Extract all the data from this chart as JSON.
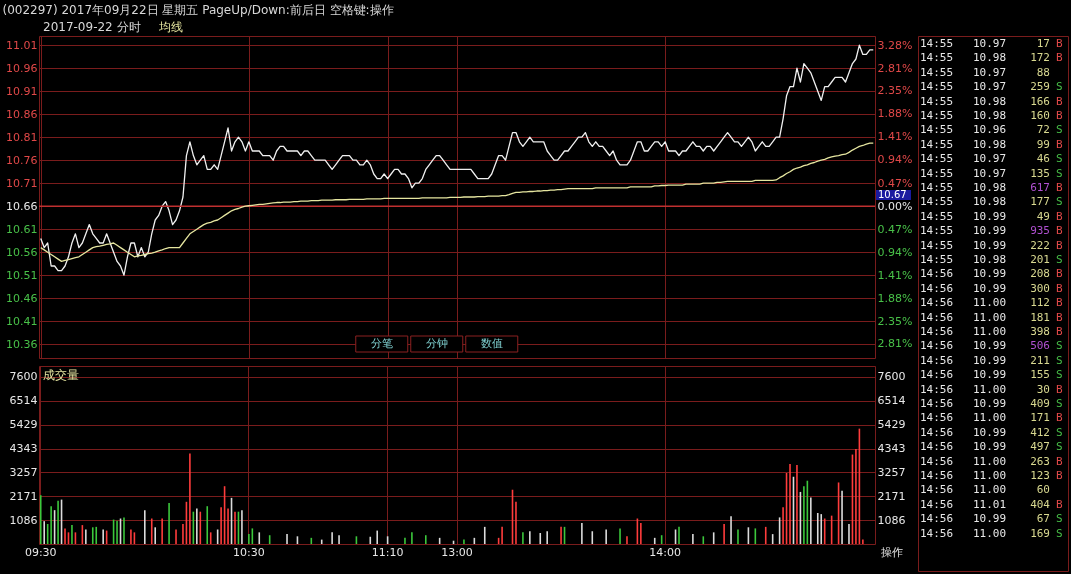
{
  "chart_data": [
    {
      "type": "line",
      "title": "(002297) 2017年09月22日 星期五 PageUp/Down:前后日 空格键:操作",
      "subtitle": "2017-09-22 分时",
      "categories": [
        null,
        null,
        null,
        null,
        null,
        null,
        null,
        null,
        null,
        null,
        null,
        null,
        null,
        null,
        null,
        null,
        null,
        null,
        null,
        null,
        null,
        null,
        null,
        null,
        null,
        null,
        null,
        null,
        null,
        null,
        null,
        null,
        null,
        null,
        null,
        null,
        null,
        null,
        null,
        null,
        null,
        null,
        null,
        null,
        null,
        null,
        null,
        null,
        null,
        null,
        null,
        null,
        null,
        null,
        null,
        null,
        null,
        null,
        null,
        null,
        null,
        null,
        null,
        null,
        null,
        null,
        null,
        null,
        null,
        null,
        null,
        null,
        null,
        null,
        null,
        null,
        null,
        null,
        null,
        null,
        null,
        null,
        null,
        null,
        null,
        null,
        null,
        null,
        null,
        null,
        null,
        null,
        null,
        null,
        null,
        null,
        null,
        null,
        null,
        null,
        null,
        null,
        null,
        null,
        null,
        null,
        null,
        null,
        null,
        null,
        null,
        null,
        null,
        null,
        null,
        null,
        null,
        null,
        null,
        null,
        null,
        null,
        null,
        null,
        null,
        null,
        null,
        null,
        null,
        null,
        null,
        null,
        null,
        null,
        null,
        null,
        null,
        null,
        null,
        null,
        null,
        null,
        null,
        null,
        null,
        null,
        null,
        null,
        null,
        null,
        null,
        null,
        null,
        null,
        null,
        null,
        null,
        null,
        null,
        null,
        null,
        null,
        null,
        null,
        null,
        null,
        null,
        null,
        null,
        null,
        null,
        null,
        null,
        null,
        null,
        null,
        null,
        null,
        null,
        null,
        null,
        null,
        null,
        null,
        null,
        null,
        null,
        null,
        null,
        null,
        null,
        null,
        null,
        null,
        null,
        null,
        null,
        null,
        null,
        null,
        null,
        null,
        null,
        null,
        null,
        null,
        null,
        null,
        null,
        null,
        null,
        null,
        null,
        null,
        null,
        null,
        null,
        null,
        null,
        null,
        null,
        null,
        null,
        null,
        null,
        null,
        null,
        null,
        null,
        null,
        null,
        null,
        null,
        null,
        null,
        null,
        null,
        null,
        null,
        null,
        null
      ],
      "ylim": [
        10.33,
        11.03
      ],
      "yticks": [
        10.36,
        10.41,
        10.46,
        10.51,
        10.56,
        10.61,
        10.66,
        10.71,
        10.76,
        10.81,
        10.86,
        10.91,
        10.96,
        11.01
      ],
      "y2lim": [
        -3.1,
        3.47
      ],
      "y2ticks": [
        {
          "value": -2.81,
          "label": "2.81%"
        },
        {
          "value": -2.35,
          "label": "2.35%"
        },
        {
          "value": -1.88,
          "label": "1.88%"
        },
        {
          "value": -1.41,
          "label": "1.41%"
        },
        {
          "value": -0.94,
          "label": "0.94%"
        },
        {
          "value": -0.47,
          "label": "0.47%"
        },
        {
          "value": 0,
          "label": "0.00%"
        },
        {
          "value": 0.47,
          "label": "0.47%"
        },
        {
          "value": 0.94,
          "label": "0.94%"
        },
        {
          "value": 1.41,
          "label": "1.41%"
        },
        {
          "value": 1.88,
          "label": "1.88%"
        },
        {
          "value": 2.35,
          "label": "2.35%"
        },
        {
          "value": 2.81,
          "label": "2.81%"
        },
        {
          "value": 3.28,
          "label": "3.28%"
        }
      ],
      "ref_lines": [
        {
          "axis": "y",
          "value": 10.66,
          "color": "#c03030"
        }
      ],
      "tick_labels": "y",
      "grid": true,
      "annotations": [
        "分笔",
        "分钟",
        "数值",
        "10.67"
      ],
      "series": [
        {
          "color": "#f0f0f0",
          "values": [
            10.59,
            10.57,
            10.58,
            10.53,
            10.53,
            10.52,
            10.52,
            10.53,
            10.55,
            10.58,
            10.6,
            10.57,
            10.58,
            10.6,
            10.62,
            10.6,
            10.59,
            10.58,
            10.58,
            10.6,
            10.58,
            10.56,
            10.54,
            10.53,
            10.51,
            10.55,
            10.58,
            10.58,
            10.55,
            10.57,
            10.55,
            10.56,
            10.6,
            10.63,
            10.64,
            10.66,
            10.67,
            10.65,
            10.62,
            10.63,
            10.65,
            10.68,
            10.77,
            10.8,
            10.77,
            10.75,
            10.76,
            10.77,
            10.74,
            10.74,
            10.75,
            10.74,
            10.77,
            10.8,
            10.83,
            10.78,
            10.8,
            10.81,
            10.8,
            10.78,
            10.8,
            10.78,
            10.78,
            10.78,
            10.77,
            10.77,
            10.77,
            10.76,
            10.78,
            10.79,
            10.79,
            10.78,
            10.78,
            10.78,
            10.78,
            10.77,
            10.78,
            10.78,
            10.77,
            10.76,
            10.76,
            10.76,
            10.76,
            10.75,
            10.74,
            10.75,
            10.76,
            10.77,
            10.77,
            10.77,
            10.76,
            10.76,
            10.75,
            10.75,
            10.76,
            10.75,
            10.73,
            10.72,
            10.72,
            10.73,
            10.72,
            10.73,
            10.74,
            10.74,
            10.73,
            10.73,
            10.72,
            10.7,
            10.71,
            10.71,
            10.72,
            10.74,
            10.75,
            10.76,
            10.77,
            10.77,
            10.76,
            10.75,
            10.74,
            10.74,
            10.74,
            10.74,
            10.74,
            10.74,
            10.74,
            10.73,
            10.72,
            10.72,
            10.72,
            10.72,
            10.73,
            10.75,
            10.77,
            10.77,
            10.76,
            10.79,
            10.82,
            10.82,
            10.8,
            10.79,
            10.8,
            10.81,
            10.8,
            10.8,
            10.8,
            10.8,
            10.78,
            10.77,
            10.76,
            10.76,
            10.77,
            10.78,
            10.78,
            10.79,
            10.8,
            10.81,
            10.81,
            10.82,
            10.8,
            10.79,
            10.8,
            10.79,
            10.79,
            10.78,
            10.77,
            10.78,
            10.76,
            10.75,
            10.75,
            10.75,
            10.76,
            10.78,
            10.8,
            10.8,
            10.78,
            10.78,
            10.79,
            10.8,
            10.8,
            10.79,
            10.8,
            10.78,
            10.78,
            10.78,
            10.77,
            10.78,
            10.78,
            10.79,
            10.8,
            10.79,
            10.79,
            10.78,
            10.79,
            10.79,
            10.78,
            10.79,
            10.8,
            10.81,
            10.82,
            10.81,
            10.8,
            10.8,
            10.79,
            10.8,
            10.81,
            10.8,
            10.78,
            10.79,
            10.8,
            10.79,
            10.79,
            10.8,
            10.81,
            10.81,
            10.85,
            10.9,
            10.92,
            10.92,
            10.96,
            10.93,
            10.97,
            10.96,
            10.95,
            10.93,
            10.91,
            10.89,
            10.92,
            10.92,
            10.93,
            10.94,
            10.94,
            10.94,
            10.93,
            10.95,
            10.97,
            10.98,
            11.01,
            10.99,
            10.99,
            11.0,
            11.0
          ]
        },
        {
          "name": "均线",
          "color": "#e6e6a0",
          "values": [
            10.57,
            10.565,
            10.56,
            10.555,
            10.55,
            10.545,
            10.54,
            10.542,
            10.544,
            10.546,
            10.548,
            10.55,
            10.555,
            10.56,
            10.565,
            10.57,
            10.572,
            10.573,
            10.575,
            10.577,
            10.578,
            10.58,
            10.575,
            10.57,
            10.565,
            10.56,
            10.555,
            10.55,
            10.552,
            10.553,
            10.555,
            10.557,
            10.558,
            10.56,
            10.563,
            10.565,
            10.568,
            10.57,
            10.57,
            10.57,
            10.57,
            10.58,
            10.59,
            10.6,
            10.605,
            10.61,
            10.615,
            10.62,
            10.623,
            10.625,
            10.628,
            10.63,
            10.635,
            10.64,
            10.645,
            10.65,
            10.653,
            10.655,
            10.658,
            10.66,
            10.661,
            10.662,
            10.663,
            10.664,
            10.664,
            10.665,
            10.666,
            10.667,
            10.668,
            10.668,
            10.669,
            10.669,
            10.669,
            10.67,
            10.67,
            10.671,
            10.671,
            10.671,
            10.672,
            10.672,
            10.672,
            10.673,
            10.673,
            10.673,
            10.673,
            10.674,
            10.674,
            10.674,
            10.674,
            10.675,
            10.675,
            10.675,
            10.675,
            10.675,
            10.676,
            10.676,
            10.676,
            10.676,
            10.676,
            10.677,
            10.677,
            10.677,
            10.677,
            10.677,
            10.677,
            10.677,
            10.677,
            10.677,
            10.677,
            10.677,
            10.678,
            10.678,
            10.678,
            10.678,
            10.678,
            10.678,
            10.678,
            10.678,
            10.679,
            10.679,
            10.679,
            10.679,
            10.68,
            10.68,
            10.68,
            10.68,
            10.681,
            10.681,
            10.681,
            10.682,
            10.682,
            10.682,
            10.682,
            10.683,
            10.683,
            10.685,
            10.688,
            10.69,
            10.69,
            10.691,
            10.691,
            10.692,
            10.692,
            10.693,
            10.693,
            10.694,
            10.694,
            10.695,
            10.695,
            10.696,
            10.696,
            10.697,
            10.698,
            10.698,
            10.698,
            10.698,
            10.698,
            10.698,
            10.698,
            10.698,
            10.7,
            10.7,
            10.7,
            10.7,
            10.7,
            10.7,
            10.7,
            10.7,
            10.7,
            10.7,
            10.702,
            10.702,
            10.702,
            10.702,
            10.702,
            10.702,
            10.702,
            10.704,
            10.704,
            10.705,
            10.705,
            10.706,
            10.706,
            10.706,
            10.706,
            10.706,
            10.708,
            10.708,
            10.708,
            10.708,
            10.708,
            10.71,
            10.71,
            10.71,
            10.71,
            10.712,
            10.712,
            10.713,
            10.714,
            10.714,
            10.714,
            10.714,
            10.714,
            10.714,
            10.714,
            10.714,
            10.716,
            10.716,
            10.716,
            10.716,
            10.716,
            10.716,
            10.717,
            10.722,
            10.726,
            10.731,
            10.735,
            10.74,
            10.743,
            10.745,
            10.748,
            10.75,
            10.753,
            10.755,
            10.758,
            10.76,
            10.762,
            10.765,
            10.767,
            10.769,
            10.77,
            10.772,
            10.773,
            10.777,
            10.782,
            10.786,
            10.79,
            10.792,
            10.795,
            10.797,
            10.797
          ]
        }
      ]
    },
    {
      "type": "bar",
      "categories": [
        "09:30",
        null,
        null,
        null,
        null,
        null,
        null,
        null,
        null,
        null,
        null,
        null,
        null,
        null,
        null,
        null,
        null,
        null,
        null,
        null,
        null,
        null,
        null,
        null,
        null,
        null,
        null,
        null,
        null,
        null,
        null,
        null,
        null,
        null,
        null,
        null,
        null,
        null,
        null,
        null,
        null,
        null,
        null,
        null,
        null,
        null,
        null,
        null,
        null,
        null,
        null,
        null,
        null,
        null,
        null,
        null,
        null,
        null,
        null,
        null,
        "10:30",
        null,
        null,
        null,
        null,
        null,
        null,
        null,
        null,
        null,
        null,
        null,
        null,
        null,
        null,
        null,
        null,
        null,
        null,
        null,
        null,
        null,
        null,
        null,
        null,
        null,
        null,
        null,
        null,
        null,
        null,
        null,
        null,
        null,
        null,
        null,
        null,
        null,
        null,
        null,
        "11:10",
        null,
        null,
        null,
        null,
        null,
        null,
        null,
        null,
        null,
        null,
        null,
        null,
        null,
        null,
        null,
        null,
        null,
        null,
        null,
        "13:00",
        null,
        null,
        null,
        null,
        null,
        null,
        null,
        null,
        null,
        null,
        null,
        null,
        null,
        null,
        null,
        null,
        null,
        null,
        null,
        null,
        null,
        null,
        null,
        null,
        null,
        null,
        null,
        null,
        null,
        null,
        null,
        null,
        null,
        null,
        null,
        null,
        null,
        null,
        null,
        null,
        null,
        null,
        null,
        null,
        null,
        null,
        null,
        null,
        null,
        null,
        null,
        null,
        null,
        null,
        null,
        null,
        null,
        null,
        null,
        "14:00",
        null,
        null,
        null,
        null,
        null,
        null,
        null,
        null,
        null,
        null,
        null,
        null,
        null,
        null,
        null,
        null,
        null,
        null,
        null,
        null,
        null,
        null,
        null,
        null,
        null,
        null,
        null,
        null,
        null,
        null,
        null,
        null,
        null,
        null,
        null,
        null,
        null,
        null,
        null,
        null,
        null,
        null,
        null,
        null,
        null,
        null,
        null,
        null,
        null,
        null,
        null,
        null,
        null,
        null,
        null,
        null,
        null,
        null,
        null,
        null
      ],
      "ylim": [
        0,
        8100
      ],
      "yticks": [
        1086,
        2171,
        3257,
        4343,
        5429,
        6514,
        7600
      ],
      "y2lim": [
        0,
        8100
      ],
      "y2ticks": [
        1086,
        2171,
        3257,
        4343,
        5429,
        6514,
        7600
      ],
      "grid": true,
      "annotations": [
        "操作"
      ],
      "series": [
        {
          "name": "成交量",
          "color": "#e6e6a0",
          "values": [
            2220,
            1040,
            910,
            1720,
            1540,
            1970,
            2020,
            710,
            530,
            860,
            530,
            null,
            860,
            660,
            null,
            760,
            780,
            null,
            660,
            610,
            null,
            1110,
            1060,
            1160,
            1210,
            null,
            660,
            530,
            null,
            null,
            1540,
            null,
            1160,
            760,
            null,
            1160,
            null,
            1870,
            null,
            660,
            null,
            910,
            1920,
            4120,
            1470,
            1620,
            1470,
            null,
            1720,
            530,
            null,
            660,
            1670,
            2630,
            1620,
            2100,
            1470,
            1470,
            1540,
            null,
            450,
            710,
            null,
            530,
            null,
            null,
            400,
            null,
            null,
            null,
            null,
            450,
            null,
            null,
            350,
            null,
            null,
            null,
            280,
            null,
            null,
            200,
            null,
            null,
            530,
            null,
            400,
            null,
            null,
            null,
            null,
            350,
            null,
            null,
            null,
            330,
            null,
            610,
            null,
            null,
            350,
            null,
            null,
            null,
            null,
            280,
            null,
            530,
            null,
            null,
            null,
            400,
            null,
            null,
            null,
            280,
            null,
            null,
            null,
            150,
            null,
            null,
            200,
            null,
            null,
            280,
            null,
            null,
            780,
            null,
            null,
            null,
            280,
            780,
            null,
            null,
            2470,
            1920,
            null,
            530,
            null,
            580,
            null,
            null,
            500,
            null,
            580,
            null,
            null,
            null,
            780,
            780,
            null,
            null,
            null,
            null,
            960,
            null,
            null,
            580,
            null,
            null,
            null,
            660,
            null,
            null,
            null,
            710,
            null,
            350,
            null,
            null,
            1160,
            960,
            null,
            null,
            null,
            280,
            null,
            400,
            null,
            null,
            null,
            660,
            780,
            null,
            null,
            null,
            450,
            null,
            null,
            350,
            null,
            null,
            530,
            null,
            null,
            910,
            null,
            1260,
            null,
            660,
            null,
            null,
            760,
            null,
            710,
            null,
            null,
            780,
            null,
            450,
            null,
            1210,
            1670,
            3230,
            3640,
            3060,
            3590,
            2370,
            2630,
            2880,
            2120,
            null,
            1410,
            1360,
            1160,
            null,
            1290,
            null,
            2800,
            2420,
            null,
            910,
            4070,
            4320,
            5250,
            200,
            null,
            null,
            null
          ],
          "colors": [
            "#3cc83c",
            "#dcdcdc",
            "#3cc83c",
            "#3cc83c",
            "#dcdcdc",
            "#3cc83c",
            "#dcdcdc",
            "#ff3c3c",
            "#ff3c3c",
            "#3cc83c",
            "#ff3c3c",
            null,
            "#ff3c3c",
            "#dcdcdc",
            null,
            "#3cc83c",
            "#3cc83c",
            null,
            "#dcdcdc",
            "#ff3c3c",
            null,
            "#3cc83c",
            "#3cc83c",
            "#dcdcdc",
            "#3cc83c",
            null,
            "#ff3c3c",
            "#ff3c3c",
            null,
            null,
            "#dcdcdc",
            null,
            "#ff3c3c",
            "#dcdcdc",
            null,
            "#ff3c3c",
            null,
            "#3cc83c",
            null,
            "#ff3c3c",
            null,
            "#ff3c3c",
            "#ff3c3c",
            "#ff3c3c",
            "#3cc83c",
            "#dcdcdc",
            "#ff3c3c",
            null,
            "#3cc83c",
            "#ff3c3c",
            null,
            "#dcdcdc",
            "#ff3c3c",
            "#ff3c3c",
            "#ff3c3c",
            "#dcdcdc",
            "#ff3c3c",
            "#3cc83c",
            "#dcdcdc",
            null,
            "#3cc83c",
            "#3cc83c",
            null,
            "#dcdcdc",
            null,
            null,
            "#3cc83c",
            null,
            null,
            null,
            null,
            "#dcdcdc",
            null,
            null,
            "#dcdcdc",
            null,
            null,
            null,
            "#3cc83c",
            null,
            null,
            "#dcdcdc",
            null,
            null,
            "#dcdcdc",
            null,
            "#dcdcdc",
            null,
            null,
            null,
            null,
            "#3cc83c",
            null,
            null,
            null,
            "#dcdcdc",
            null,
            "#dcdcdc",
            null,
            null,
            "#dcdcdc",
            null,
            null,
            null,
            null,
            "#3cc83c",
            null,
            "#3cc83c",
            null,
            null,
            null,
            "#3cc83c",
            null,
            null,
            null,
            "#dcdcdc",
            null,
            null,
            null,
            "#dcdcdc",
            null,
            null,
            "#3cc83c",
            null,
            null,
            "#dcdcdc",
            null,
            null,
            "#dcdcdc",
            null,
            null,
            null,
            "#ff3c3c",
            "#ff3c3c",
            null,
            null,
            "#ff3c3c",
            "#ff3c3c",
            null,
            "#3cc83c",
            null,
            "#dcdcdc",
            null,
            null,
            "#dcdcdc",
            null,
            "#dcdcdc",
            null,
            null,
            null,
            "#ff3c3c",
            "#3cc83c",
            null,
            null,
            null,
            null,
            "#dcdcdc",
            null,
            null,
            "#dcdcdc",
            null,
            null,
            null,
            "#dcdcdc",
            null,
            null,
            null,
            "#3cc83c",
            null,
            "#ff3c3c",
            null,
            null,
            "#ff3c3c",
            "#ff3c3c",
            null,
            null,
            null,
            "#dcdcdc",
            null,
            "#3cc83c",
            null,
            null,
            null,
            "#dcdcdc",
            "#3cc83c",
            null,
            null,
            null,
            "#dcdcdc",
            null,
            null,
            "#3cc83c",
            null,
            null,
            "#dcdcdc",
            null,
            null,
            "#ff3c3c",
            null,
            "#dcdcdc",
            null,
            "#3cc83c",
            null,
            null,
            "#dcdcdc",
            null,
            "#3cc83c",
            null,
            null,
            "#ff3c3c",
            null,
            "#dcdcdc",
            null,
            "#dcdcdc",
            "#ff3c3c",
            "#ff3c3c",
            "#ff3c3c",
            "#dcdcdc",
            "#ff3c3c",
            "#dcdcdc",
            "#3cc83c",
            "#3cc83c",
            "#dcdcdc",
            null,
            "#dcdcdc",
            "#dcdcdc",
            "#ff3c3c",
            null,
            "#ff3c3c",
            null,
            "#ff3c3c",
            "#dcdcdc",
            null,
            "#dcdcdc",
            "#ff3c3c",
            "#ff3c3c",
            "#ff3c3c",
            "#ff3c3c",
            null,
            null,
            null
          ]
        }
      ]
    },
    {
      "type": "other",
      "annotations": [
        "14:55 10.97 17 B",
        "14:55 10.98 172 B",
        "14:55 10.97 88",
        "14:55 10.97 259 S",
        "14:55 10.98 166 B",
        "14:55 10.98 160 B",
        "14:55 10.96 72 S",
        "14:55 10.98 99 B",
        "14:55 10.97 46 S",
        "14:55 10.97 135 S",
        "14:55 10.98 617 B",
        "14:55 10.98 177 S",
        "14:55 10.99 49 B",
        "14:55 10.99 935 B",
        "14:55 10.99 222 B",
        "14:55 10.98 201 S",
        "14:56 10.99 208 B",
        "14:56 10.99 300 B",
        "14:56 11.00 112 B",
        "14:56 11.00 181 B",
        "14:56 11.00 398 B",
        "14:56 10.99 506 S",
        "14:56 10.99 211 S",
        "14:56 10.99 155 S",
        "14:56 11.00 30 B",
        "14:56 10.99 409 S",
        "14:56 11.00 171 B",
        "14:56 10.99 412 S",
        "14:56 10.99 497 S",
        "14:56 11.00 263 B",
        "14:56 11.00 123 B",
        "14:56 11.00 60",
        "14:56 11.01 404 B",
        "14:56 10.99 67 S",
        "14:56 11.00 169 S"
      ]
    }
  ]
}
